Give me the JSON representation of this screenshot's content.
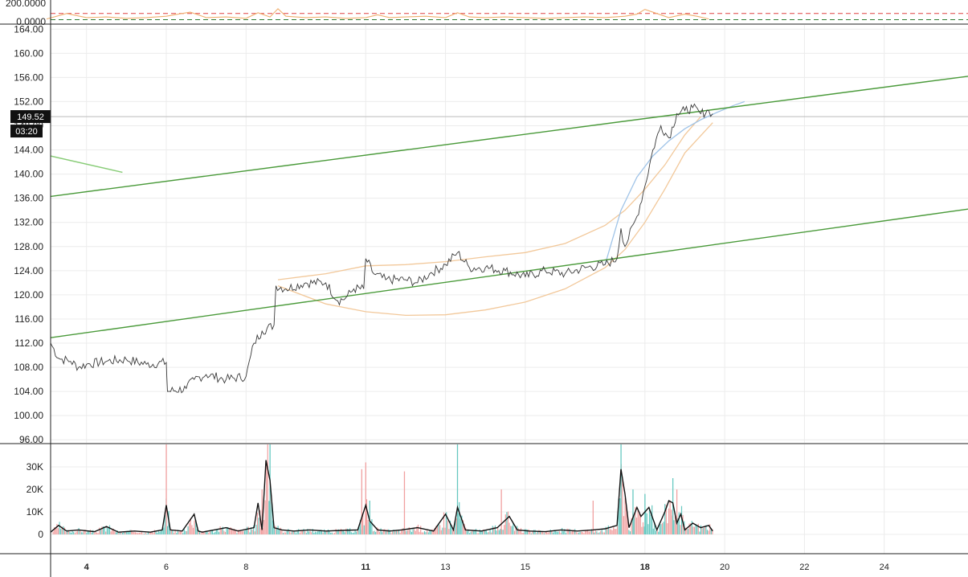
{
  "chart_data": [
    {
      "panel": "oscillator",
      "type": "line",
      "tick_labels": [
        "200.0000",
        "0.0000"
      ],
      "ylim": [
        0,
        200
      ],
      "threshold_lines": [
        {
          "value": 120,
          "color": "#e04040",
          "style": "dashed"
        },
        {
          "value": 30,
          "color": "#2e7d32",
          "style": "dashed"
        }
      ],
      "series": [
        {
          "color": "#f0b070",
          "x": [
            3.0,
            3.5,
            4.0,
            4.5,
            5.0,
            5.5,
            6.0,
            6.3,
            6.6,
            7.0,
            7.5,
            8.0,
            8.3,
            8.6,
            8.8,
            9.0,
            9.5,
            10.0,
            10.5,
            11.0,
            11.3,
            11.6,
            12.0,
            12.5,
            13.0,
            13.3,
            13.6,
            14.0,
            14.5,
            15.0,
            15.5,
            16.0,
            16.5,
            17.0,
            17.5,
            17.8,
            18.0,
            18.3,
            18.6,
            19.0,
            19.3,
            19.6
          ],
          "y": [
            40,
            120,
            60,
            70,
            50,
            60,
            80,
            110,
            140,
            60,
            70,
            50,
            130,
            70,
            190,
            80,
            60,
            70,
            50,
            60,
            100,
            60,
            70,
            80,
            60,
            130,
            70,
            60,
            70,
            60,
            50,
            60,
            70,
            60,
            80,
            110,
            180,
            120,
            60,
            110,
            80,
            40
          ]
        }
      ]
    },
    {
      "panel": "price",
      "type": "line",
      "y_tick_labels": [
        "164.00",
        "160.00",
        "156.00",
        "152.00",
        "148.00",
        "144.00",
        "140.00",
        "136.00",
        "132.00",
        "128.00",
        "124.00",
        "120.00",
        "116.00",
        "112.00",
        "108.00",
        "104.00",
        "100.00",
        "96.00"
      ],
      "ylim": [
        95.5,
        164.7
      ],
      "xlim": [
        3.1,
        26.1
      ],
      "grid": true,
      "current_price_label": "149.52",
      "countdown_label": "03:20",
      "current_price_line": 149.52,
      "trend_lines": [
        {
          "color": "#4a9a3a",
          "x": [
            3.1,
            26.1
          ],
          "y": [
            136.3,
            156.2
          ]
        },
        {
          "color": "#4a9a3a",
          "x": [
            3.1,
            26.1
          ],
          "y": [
            112.9,
            134.2
          ]
        },
        {
          "color": "#88cc77",
          "x": [
            3.1,
            4.9
          ],
          "y": [
            143.0,
            140.3
          ]
        }
      ],
      "curves": [
        {
          "color": "#f2c89a",
          "x": [
            8.8,
            10,
            11,
            12,
            13,
            14,
            15,
            16,
            17,
            17.5,
            18,
            18.5,
            19,
            19.4
          ],
          "y": [
            122.5,
            123.5,
            124.8,
            125.0,
            125.5,
            126.3,
            127.0,
            128.5,
            131.5,
            134.0,
            137.5,
            141.5,
            146.5,
            149.5
          ]
        },
        {
          "color": "#f2c89a",
          "x": [
            8.8,
            10,
            11,
            12,
            13,
            14,
            15,
            16,
            17,
            17.5,
            18,
            18.5,
            19,
            19.7
          ],
          "y": [
            121.5,
            118.5,
            117.2,
            116.6,
            116.7,
            117.5,
            118.8,
            121.0,
            124.5,
            127.5,
            132.0,
            137.5,
            143.5,
            148.5
          ]
        },
        {
          "color": "#a0c4e8",
          "x": [
            17.0,
            17.4,
            17.8,
            18.2,
            18.6,
            19.0,
            19.4,
            19.8,
            20.2,
            20.5
          ],
          "y": [
            125.0,
            134.0,
            139.5,
            143.0,
            145.5,
            147.5,
            149.0,
            150.2,
            151.3,
            152.0
          ]
        }
      ],
      "series": [
        {
          "color": "#3a3a3a",
          "x": [
            3.1,
            3.3,
            3.6,
            3.8,
            4.0,
            4.5,
            5.0,
            5.5,
            6.0,
            6.03,
            6.5,
            6.7,
            7.0,
            7.5,
            8.0,
            8.2,
            8.4,
            8.7,
            8.75,
            9.0,
            9.5,
            10.0,
            10.3,
            10.5,
            10.7,
            10.95,
            11.0,
            11.2,
            11.5,
            12.0,
            12.3,
            12.6,
            13.0,
            13.3,
            13.6,
            14.0,
            14.5,
            15.0,
            15.5,
            16.0,
            16.5,
            17.0,
            17.3,
            17.4,
            17.5,
            17.8,
            18.0,
            18.2,
            18.4,
            18.6,
            18.8,
            19.0,
            19.2,
            19.4,
            19.6,
            19.7
          ],
          "y": [
            112.0,
            109.5,
            109.0,
            108.0,
            108.5,
            109.0,
            109.3,
            108.5,
            108.8,
            104.0,
            104.5,
            106.0,
            106.8,
            106.0,
            106.5,
            112.0,
            114.0,
            115.0,
            121.5,
            121.0,
            122.0,
            122.0,
            119.0,
            119.5,
            121.0,
            121.0,
            126.0,
            123.5,
            122.5,
            122.5,
            122.0,
            123.5,
            125.0,
            127.0,
            124.5,
            124.5,
            124.0,
            123.0,
            124.0,
            123.5,
            124.5,
            125.0,
            126.0,
            131.0,
            128.0,
            133.0,
            138.0,
            144.0,
            148.0,
            146.0,
            150.0,
            150.5,
            151.0,
            150.0,
            150.5,
            150.0
          ]
        }
      ]
    },
    {
      "panel": "volume",
      "type": "bar",
      "y_tick_labels": [
        "30K",
        "20K",
        "10K",
        "0"
      ],
      "ylim": [
        0,
        40000
      ],
      "bar_colors": {
        "up": "#66c8c0",
        "down": "#f0a0a0"
      },
      "moving_average_color": "#111111",
      "spike_bars": [
        {
          "x": 6.0,
          "value": 40000,
          "dir": "down"
        },
        {
          "x": 8.4,
          "value": 20000,
          "dir": "down"
        },
        {
          "x": 8.6,
          "value": 40000,
          "dir": "up"
        },
        {
          "x": 10.9,
          "value": 29000,
          "dir": "down"
        },
        {
          "x": 11.0,
          "value": 32000,
          "dir": "down"
        },
        {
          "x": 11.1,
          "value": 15000,
          "dir": "up"
        },
        {
          "x": 11.97,
          "value": 28000,
          "dir": "down"
        },
        {
          "x": 13.3,
          "value": 40000,
          "dir": "up"
        },
        {
          "x": 14.4,
          "value": 20000,
          "dir": "down"
        },
        {
          "x": 17.4,
          "value": 40000,
          "dir": "up"
        },
        {
          "x": 17.7,
          "value": 20000,
          "dir": "up"
        },
        {
          "x": 18.0,
          "value": 18000,
          "dir": "up"
        },
        {
          "x": 18.7,
          "value": 25000,
          "dir": "up"
        },
        {
          "x": 18.8,
          "value": 20000,
          "dir": "down"
        },
        {
          "x": 16.7,
          "value": 15000,
          "dir": "down"
        }
      ],
      "moving_average": {
        "x": [
          3.1,
          3.3,
          3.5,
          3.8,
          4.2,
          4.5,
          4.8,
          5.2,
          5.6,
          5.9,
          6.0,
          6.1,
          6.4,
          6.7,
          6.8,
          6.9,
          7.2,
          7.5,
          7.8,
          8.2,
          8.3,
          8.4,
          8.5,
          8.6,
          8.7,
          8.9,
          9.2,
          9.6,
          10.0,
          10.4,
          10.8,
          11.0,
          11.1,
          11.3,
          11.6,
          11.9,
          12.3,
          12.7,
          13.0,
          13.2,
          13.3,
          13.5,
          13.9,
          14.3,
          14.6,
          14.8,
          15.1,
          15.5,
          15.9,
          16.3,
          16.7,
          17.0,
          17.3,
          17.4,
          17.5,
          17.6,
          17.8,
          17.9,
          18.1,
          18.3,
          18.5,
          18.6,
          18.7,
          18.8,
          18.9,
          19.0,
          19.2,
          19.4,
          19.6,
          19.7
        ],
        "y": [
          1000,
          4000,
          1500,
          2000,
          1200,
          3500,
          1000,
          1500,
          1000,
          2000,
          13000,
          2000,
          1500,
          9000,
          1500,
          1000,
          2000,
          3000,
          1500,
          3000,
          14000,
          2000,
          33000,
          24000,
          3000,
          2000,
          1500,
          2000,
          1500,
          1800,
          2000,
          13000,
          6000,
          2000,
          1500,
          2000,
          3000,
          1500,
          9000,
          2000,
          12000,
          2000,
          1500,
          3000,
          8000,
          2000,
          1500,
          1200,
          2000,
          1500,
          2000,
          2500,
          4000,
          29000,
          18000,
          3000,
          12000,
          8000,
          12000,
          2000,
          10000,
          15000,
          14000,
          5000,
          9000,
          2000,
          5000,
          3000,
          4000,
          1500
        ]
      }
    },
    {
      "panel": "x-axis",
      "x_tick_labels": [
        {
          "value": 4,
          "label": "4",
          "bold": true
        },
        {
          "value": 6,
          "label": "6",
          "bold": false
        },
        {
          "value": 8,
          "label": "8",
          "bold": false
        },
        {
          "value": 11,
          "label": "11",
          "bold": true
        },
        {
          "value": 13,
          "label": "13",
          "bold": false
        },
        {
          "value": 15,
          "label": "15",
          "bold": false
        },
        {
          "value": 18,
          "label": "18",
          "bold": true
        },
        {
          "value": 20,
          "label": "20",
          "bold": false
        },
        {
          "value": 22,
          "label": "22",
          "bold": false
        },
        {
          "value": 24,
          "label": "24",
          "bold": false
        }
      ]
    }
  ]
}
